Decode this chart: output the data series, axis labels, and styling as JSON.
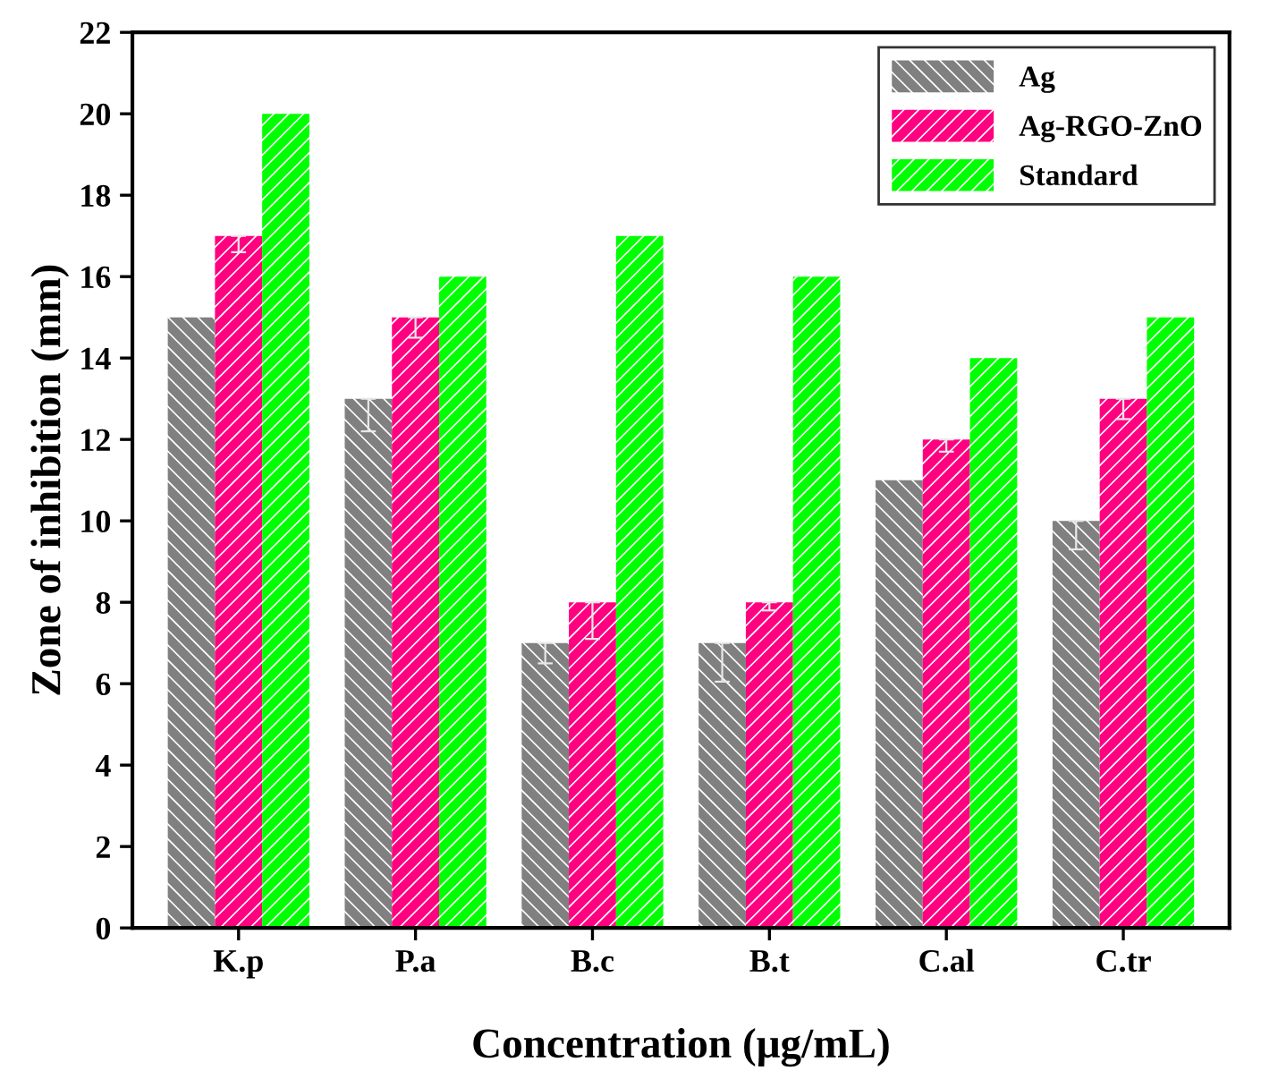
{
  "chart_data": {
    "type": "bar",
    "xlabel": "Concentration (μg/mL)",
    "ylabel": "Zone of inhibition (mm)",
    "categories": [
      "K.p",
      "P.a",
      "B.c",
      "B.t",
      "C.al",
      "C.tr"
    ],
    "series": [
      {
        "name": "Ag",
        "color": "#808080",
        "values": [
          15,
          13,
          7,
          7,
          11,
          10
        ],
        "errors": [
          null,
          [
            12.2,
            13
          ],
          [
            6.5,
            7
          ],
          [
            6.05,
            7
          ],
          null,
          [
            9.3,
            10
          ]
        ]
      },
      {
        "name": "Ag-RGO-ZnO",
        "color": "#ff0080",
        "values": [
          17,
          15,
          8,
          8,
          12,
          13
        ],
        "errors": [
          [
            16.6,
            17
          ],
          [
            14.5,
            15
          ],
          [
            7.1,
            8
          ],
          [
            7.8,
            8
          ],
          [
            11.7,
            12
          ],
          [
            12.5,
            13
          ]
        ]
      },
      {
        "name": "Standard",
        "color": "#00ff00",
        "values": [
          20,
          16,
          17,
          16,
          14,
          15
        ]
      }
    ],
    "ylim": [
      0,
      22
    ],
    "yticks": [
      0,
      2,
      4,
      6,
      8,
      10,
      12,
      14,
      16,
      18,
      20,
      22
    ],
    "legend": "top right",
    "grid": false
  }
}
